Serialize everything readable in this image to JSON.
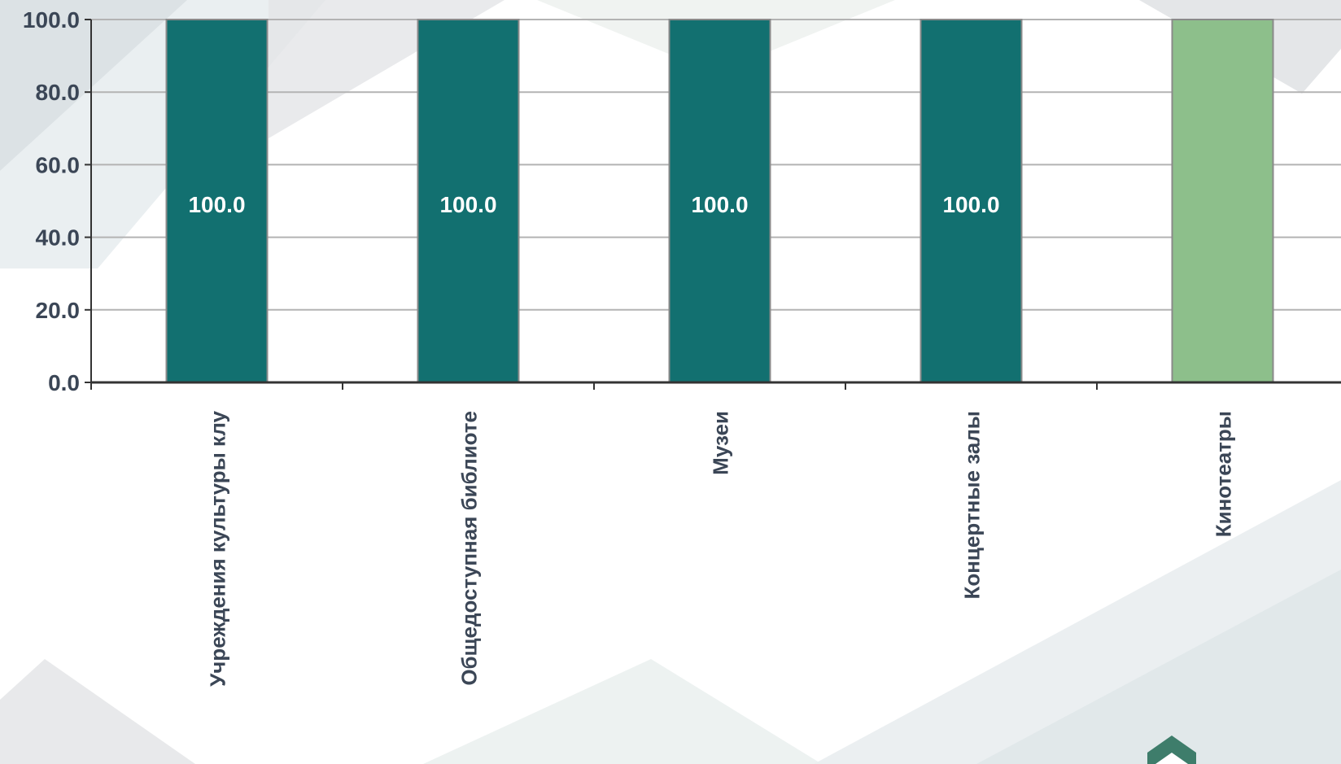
{
  "chart_data": {
    "type": "bar",
    "categories": [
      "Учреждения культуры клу",
      "Общедоступная библиоте",
      "Музеи",
      "Концертные залы",
      "Кинотеатры"
    ],
    "values": [
      100.0,
      100.0,
      100.0,
      100.0,
      100.0
    ],
    "data_labels": [
      "100.0",
      "100.0",
      "100.0",
      "100.0",
      ""
    ],
    "bar_colors": [
      "#127070",
      "#127070",
      "#127070",
      "#127070",
      "#8dbf8b"
    ],
    "ylim": [
      0,
      100
    ],
    "yticks": [
      0,
      20,
      40,
      60,
      80,
      100
    ],
    "ytick_labels": [
      "0.0",
      "20.0",
      "40.0",
      "60.0",
      "80.0",
      "100.0"
    ],
    "grid": true,
    "title": "",
    "xlabel": "",
    "ylabel": ""
  },
  "colors": {
    "axis": "#333333",
    "grid": "#b3b3b3",
    "text": "#3b4656"
  }
}
